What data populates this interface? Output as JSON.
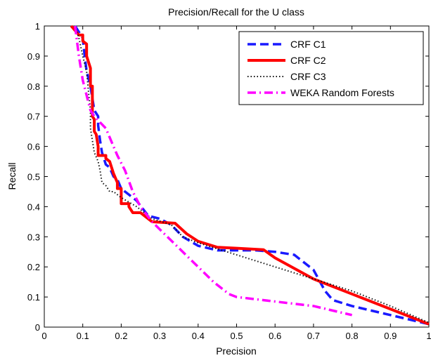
{
  "chart_data": {
    "type": "line",
    "title": "Precision/Recall for the U class",
    "xlabel": "Precision",
    "ylabel": "Recall",
    "xlim": [
      0,
      1
    ],
    "ylim": [
      0,
      1
    ],
    "xticks": [
      "0",
      "0.1",
      "0.2",
      "0.3",
      "0.4",
      "0.5",
      "0.6",
      "0.7",
      "0.8",
      "0.9",
      "1"
    ],
    "yticks": [
      "0",
      "0.1",
      "0.2",
      "0.3",
      "0.4",
      "0.5",
      "0.6",
      "0.7",
      "0.8",
      "0.9",
      "1"
    ],
    "grid": false,
    "legend_position": "top-right",
    "series": [
      {
        "name": "CRF C1",
        "color": "#1a1aff",
        "dash": "dashed",
        "points": [
          [
            0.08,
            1.0
          ],
          [
            0.09,
            0.98
          ],
          [
            0.1,
            0.96
          ],
          [
            0.105,
            0.9
          ],
          [
            0.11,
            0.85
          ],
          [
            0.12,
            0.8
          ],
          [
            0.125,
            0.76
          ],
          [
            0.13,
            0.72
          ],
          [
            0.14,
            0.7
          ],
          [
            0.14,
            0.67
          ],
          [
            0.145,
            0.62
          ],
          [
            0.15,
            0.58
          ],
          [
            0.16,
            0.54
          ],
          [
            0.17,
            0.53
          ],
          [
            0.18,
            0.5
          ],
          [
            0.19,
            0.49
          ],
          [
            0.2,
            0.46
          ],
          [
            0.22,
            0.44
          ],
          [
            0.24,
            0.42
          ],
          [
            0.27,
            0.37
          ],
          [
            0.3,
            0.36
          ],
          [
            0.33,
            0.34
          ],
          [
            0.36,
            0.3
          ],
          [
            0.4,
            0.27
          ],
          [
            0.45,
            0.255
          ],
          [
            0.5,
            0.255
          ],
          [
            0.55,
            0.255
          ],
          [
            0.6,
            0.25
          ],
          [
            0.65,
            0.24
          ],
          [
            0.7,
            0.19
          ],
          [
            0.73,
            0.12
          ],
          [
            0.75,
            0.09
          ],
          [
            0.8,
            0.07
          ],
          [
            0.9,
            0.04
          ],
          [
            1.0,
            0.01
          ]
        ]
      },
      {
        "name": "CRF C2",
        "color": "#ff0000",
        "dash": "solid",
        "points": [
          [
            0.07,
            1.0
          ],
          [
            0.09,
            0.97
          ],
          [
            0.1,
            0.97
          ],
          [
            0.1,
            0.95
          ],
          [
            0.11,
            0.94
          ],
          [
            0.11,
            0.9
          ],
          [
            0.115,
            0.88
          ],
          [
            0.12,
            0.86
          ],
          [
            0.12,
            0.8
          ],
          [
            0.125,
            0.8
          ],
          [
            0.125,
            0.7
          ],
          [
            0.13,
            0.69
          ],
          [
            0.13,
            0.65
          ],
          [
            0.135,
            0.64
          ],
          [
            0.14,
            0.6
          ],
          [
            0.14,
            0.57
          ],
          [
            0.16,
            0.57
          ],
          [
            0.16,
            0.56
          ],
          [
            0.17,
            0.55
          ],
          [
            0.175,
            0.53
          ],
          [
            0.18,
            0.51
          ],
          [
            0.19,
            0.48
          ],
          [
            0.19,
            0.46
          ],
          [
            0.2,
            0.46
          ],
          [
            0.2,
            0.44
          ],
          [
            0.2,
            0.42
          ],
          [
            0.2,
            0.41
          ],
          [
            0.22,
            0.41
          ],
          [
            0.22,
            0.4
          ],
          [
            0.23,
            0.38
          ],
          [
            0.25,
            0.38
          ],
          [
            0.27,
            0.36
          ],
          [
            0.28,
            0.35
          ],
          [
            0.34,
            0.345
          ],
          [
            0.37,
            0.31
          ],
          [
            0.4,
            0.285
          ],
          [
            0.45,
            0.265
          ],
          [
            0.5,
            0.262
          ],
          [
            0.57,
            0.257
          ],
          [
            0.6,
            0.23
          ],
          [
            0.65,
            0.195
          ],
          [
            0.7,
            0.16
          ],
          [
            0.75,
            0.135
          ],
          [
            0.8,
            0.11
          ],
          [
            0.9,
            0.06
          ],
          [
            1.0,
            0.01
          ]
        ]
      },
      {
        "name": "CRF C3",
        "color": "#111111",
        "dash": "dotted",
        "points": [
          [
            0.08,
            1.0
          ],
          [
            0.09,
            0.96
          ],
          [
            0.1,
            0.9
          ],
          [
            0.11,
            0.85
          ],
          [
            0.115,
            0.78
          ],
          [
            0.12,
            0.72
          ],
          [
            0.12,
            0.66
          ],
          [
            0.125,
            0.62
          ],
          [
            0.13,
            0.58
          ],
          [
            0.14,
            0.55
          ],
          [
            0.145,
            0.52
          ],
          [
            0.15,
            0.48
          ],
          [
            0.16,
            0.47
          ],
          [
            0.17,
            0.45
          ],
          [
            0.18,
            0.45
          ],
          [
            0.2,
            0.43
          ],
          [
            0.24,
            0.4
          ],
          [
            0.28,
            0.36
          ],
          [
            0.33,
            0.34
          ],
          [
            0.36,
            0.3
          ],
          [
            0.4,
            0.28
          ],
          [
            0.45,
            0.26
          ],
          [
            0.5,
            0.24
          ],
          [
            0.6,
            0.2
          ],
          [
            0.7,
            0.16
          ],
          [
            0.8,
            0.12
          ],
          [
            0.9,
            0.07
          ],
          [
            1.0,
            0.015
          ]
        ]
      },
      {
        "name": "WEKA Random Forests",
        "color": "#ff00ff",
        "dash": "dashdot",
        "points": [
          [
            0.08,
            1.0
          ],
          [
            0.09,
            0.9
          ],
          [
            0.1,
            0.82
          ],
          [
            0.11,
            0.77
          ],
          [
            0.12,
            0.72
          ],
          [
            0.13,
            0.7
          ],
          [
            0.145,
            0.68
          ],
          [
            0.16,
            0.66
          ],
          [
            0.17,
            0.63
          ],
          [
            0.19,
            0.57
          ],
          [
            0.21,
            0.52
          ],
          [
            0.23,
            0.45
          ],
          [
            0.25,
            0.4
          ],
          [
            0.28,
            0.35
          ],
          [
            0.32,
            0.3
          ],
          [
            0.36,
            0.25
          ],
          [
            0.4,
            0.2
          ],
          [
            0.44,
            0.15
          ],
          [
            0.48,
            0.11
          ],
          [
            0.5,
            0.1
          ],
          [
            0.6,
            0.085
          ],
          [
            0.7,
            0.07
          ],
          [
            0.8,
            0.04
          ]
        ]
      }
    ]
  }
}
